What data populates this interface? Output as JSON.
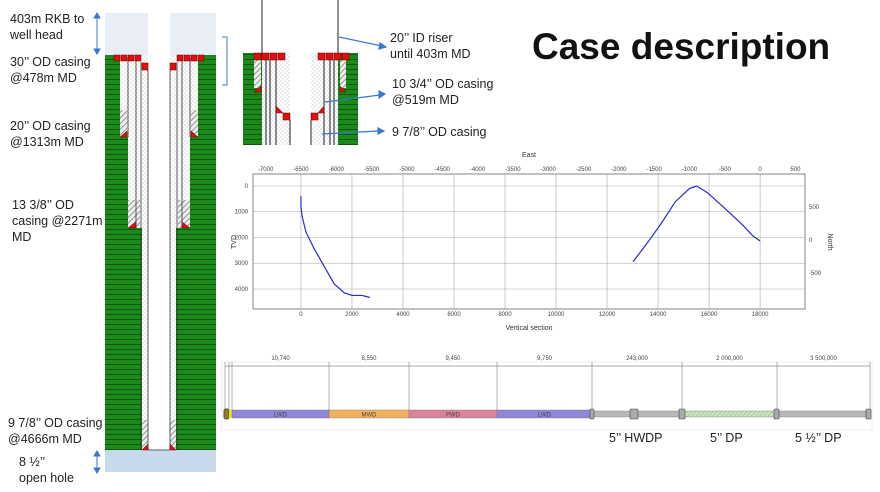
{
  "title": "Case description",
  "well_schematic": {
    "labels": [
      {
        "line1": "403m RKB to",
        "line2": "well head"
      },
      {
        "line1": "30’’ OD casing",
        "line2": "@478m MD"
      },
      {
        "line1": "20’’ OD casing",
        "line2": "@1313m MD"
      },
      {
        "line1": "13 3/8’’ OD",
        "line2": "casing @2271m",
        "line3": "MD"
      },
      {
        "line1": "9 7/8’’ OD casing",
        "line2": "@4666m MD"
      },
      {
        "line1": "8 ½’’",
        "line2": "open hole"
      }
    ]
  },
  "detail_schematic": {
    "labels": [
      {
        "line1": "20’’ ID riser",
        "line2": "until 403m MD"
      },
      {
        "line1": "10 3/4’’ OD casing",
        "line2": "@519m MD"
      },
      {
        "line1": "9 7/8’’ OD casing"
      }
    ]
  },
  "colors": {
    "formation": "#1a8a1a",
    "casing_shoe": "#e01010",
    "trajectory": "#2a2ad0",
    "lwd": "#8f86d6",
    "mwd": "#f0b25e",
    "pwd": "#d9849a",
    "pipe": "#b8b8b8",
    "dp": "#b9d9b0"
  },
  "chart_data": {
    "type": "line",
    "title": "",
    "xlabel": "Vertical section",
    "ylabel": "TVD",
    "x2label": "East",
    "y2label": "North",
    "xlim": [
      -1880,
      19760
    ],
    "ylim": [
      4777,
      -466
    ],
    "x_ticks": [
      0,
      2000,
      4000,
      6000,
      8000,
      10000,
      12000,
      14000,
      16000,
      18000
    ],
    "y_ticks": [
      0,
      1000,
      2000,
      3000,
      4000
    ],
    "x2_ticks": [
      -7000,
      -6500,
      -6000,
      -5500,
      -5000,
      -4500,
      -4000,
      -3500,
      -3000,
      -2500,
      -2000,
      -1500,
      -1000,
      -500,
      0,
      500
    ],
    "y2_ticks": [
      500,
      0,
      -500
    ],
    "grid": true,
    "series": [
      {
        "name": "Vertical section vs TVD",
        "axes": "primary",
        "x": [
          0,
          0,
          50,
          200,
          500,
          900,
          1300,
          1700,
          2000,
          2400,
          2700
        ],
        "y": [
          400,
          800,
          1200,
          1800,
          2400,
          3100,
          3800,
          4150,
          4250,
          4250,
          4330
        ]
      },
      {
        "name": "Plan view East vs North",
        "axes": "secondary",
        "x": [
          -1800,
          -1600,
          -1400,
          -1200,
          -1000,
          -900,
          -750,
          -500,
          -250,
          -100,
          0
        ],
        "y": [
          -330,
          -50,
          250,
          580,
          780,
          818,
          720,
          480,
          230,
          60,
          -15
        ]
      }
    ]
  },
  "bha": {
    "dimensions": [
      "10,740",
      "8,550",
      "9,450",
      "9,750",
      "243,000",
      "2 000,000",
      "3 500,000"
    ],
    "components": [
      "LWD",
      "MWD",
      "PWD",
      "LWD"
    ],
    "pipe_labels": [
      "5’’ HWDP",
      "5’’ DP",
      "5 ½’’ DP"
    ]
  }
}
